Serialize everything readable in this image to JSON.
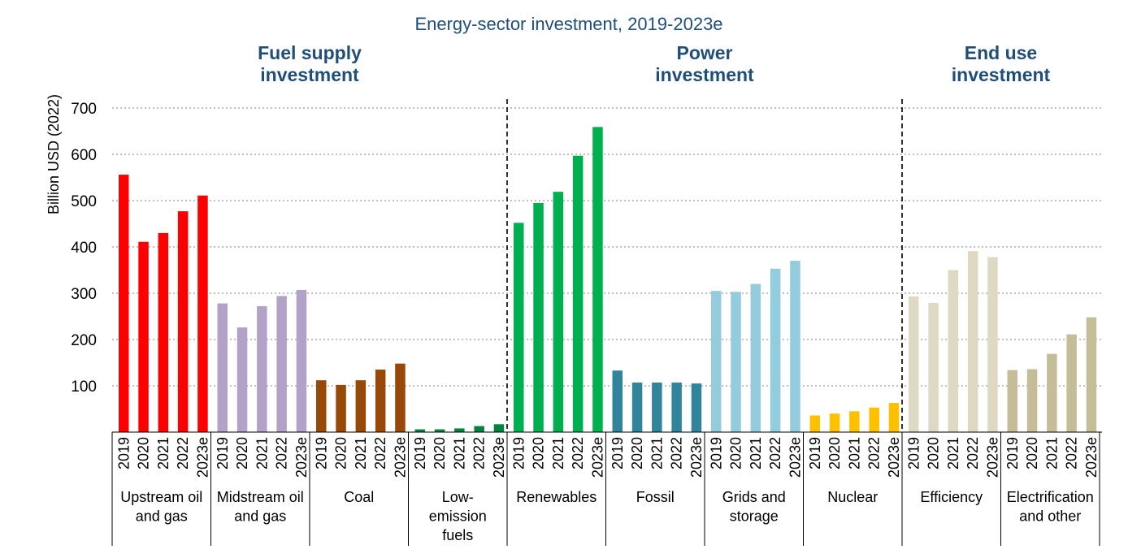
{
  "chart_data": {
    "type": "bar",
    "title": "Energy-sector investment, 2019-2023e",
    "ylabel": "Billion USD (2022)",
    "xlabel": "",
    "ylim": [
      0,
      700
    ],
    "yticks": [
      "100",
      "200",
      "300",
      "400",
      "500",
      "600",
      "700"
    ],
    "grid": true,
    "years": [
      "2019",
      "2020",
      "2021",
      "2022",
      "2023e"
    ],
    "sections": [
      {
        "name": [
          "Fuel supply",
          "investment"
        ],
        "groups": [
          0,
          1,
          2,
          3
        ]
      },
      {
        "name": [
          "Power",
          "investment"
        ],
        "groups": [
          4,
          5,
          6,
          7
        ]
      },
      {
        "name": [
          "End use",
          "investment"
        ],
        "groups": [
          8,
          9
        ]
      }
    ],
    "groups": [
      {
        "label": [
          "Upstream oil",
          "and gas"
        ],
        "color": "#ff0000",
        "values": [
          556,
          411,
          430,
          477,
          511
        ]
      },
      {
        "label": [
          "Midstream oil",
          "and gas"
        ],
        "color": "#b3a2c7",
        "values": [
          278,
          226,
          272,
          294,
          307
        ]
      },
      {
        "label": [
          "Coal"
        ],
        "color": "#984807",
        "values": [
          112,
          102,
          112,
          135,
          148
        ]
      },
      {
        "label": [
          "Low-",
          "emission",
          "fuels"
        ],
        "color": "#00843d",
        "values": [
          6,
          6,
          8,
          13,
          17
        ]
      },
      {
        "label": [
          "Renewables"
        ],
        "color": "#00b050",
        "values": [
          452,
          495,
          519,
          597,
          659
        ]
      },
      {
        "label": [
          "Fossil"
        ],
        "color": "#31849b",
        "values": [
          133,
          107,
          107,
          107,
          105
        ]
      },
      {
        "label": [
          "Grids and",
          "storage"
        ],
        "color": "#93cddd",
        "values": [
          305,
          303,
          320,
          353,
          370
        ]
      },
      {
        "label": [
          "Nuclear"
        ],
        "color": "#ffc000",
        "values": [
          36,
          40,
          45,
          53,
          63
        ]
      },
      {
        "label": [
          "Efficiency"
        ],
        "color": "#ddd9c3",
        "values": [
          293,
          279,
          350,
          391,
          378
        ]
      },
      {
        "label": [
          "Electrification",
          "and other"
        ],
        "color": "#c4bd97",
        "values": [
          134,
          136,
          169,
          211,
          248
        ]
      }
    ]
  }
}
